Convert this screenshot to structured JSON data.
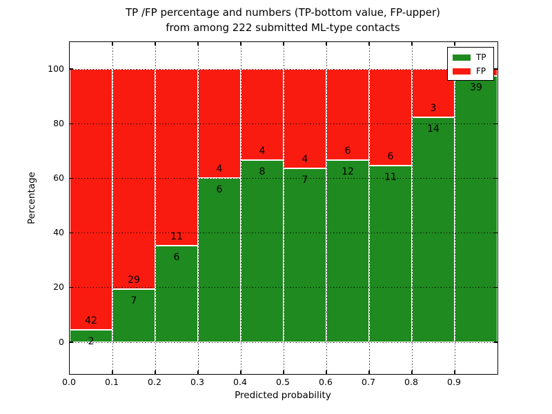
{
  "figure": {
    "title_line1": "TP /FP percentage and numbers (TP-bottom value, FP-upper)",
    "title_line2": "from among 222 submitted ML-type contacts",
    "background": "#ffffff"
  },
  "chart_data": {
    "type": "bar",
    "variant": "stacked-100-percent-histogram",
    "title": "TP /FP percentage and numbers (TP-bottom value, FP-upper) from among 222 submitted ML-type contacts",
    "xlabel": "Predicted probability",
    "ylabel": "Percentage",
    "total_submitted": 222,
    "xlim": [
      0.0,
      1.0
    ],
    "bin_width": 0.1,
    "categories": [
      "0.0",
      "0.1",
      "0.2",
      "0.3",
      "0.4",
      "0.5",
      "0.6",
      "0.7",
      "0.8",
      "0.9"
    ],
    "yticks": [
      0,
      20,
      40,
      60,
      80,
      100
    ],
    "grid": {
      "style": "dotted",
      "color": "#000000",
      "on": true
    },
    "series": [
      {
        "name": "TP",
        "position": "bottom",
        "color": "#1f8a1f",
        "counts": [
          2,
          7,
          6,
          6,
          8,
          7,
          12,
          11,
          14,
          39
        ]
      },
      {
        "name": "FP",
        "position": "top",
        "color": "#fa1b10",
        "counts": [
          42,
          29,
          11,
          4,
          4,
          4,
          6,
          6,
          3,
          1
        ]
      }
    ],
    "tp_percentages": [
      4.5,
      19.4,
      35.3,
      60.0,
      66.7,
      63.6,
      66.7,
      64.7,
      82.4,
      97.5
    ],
    "legend": {
      "position": "upper-right",
      "labels": [
        "TP",
        "FP"
      ]
    }
  }
}
